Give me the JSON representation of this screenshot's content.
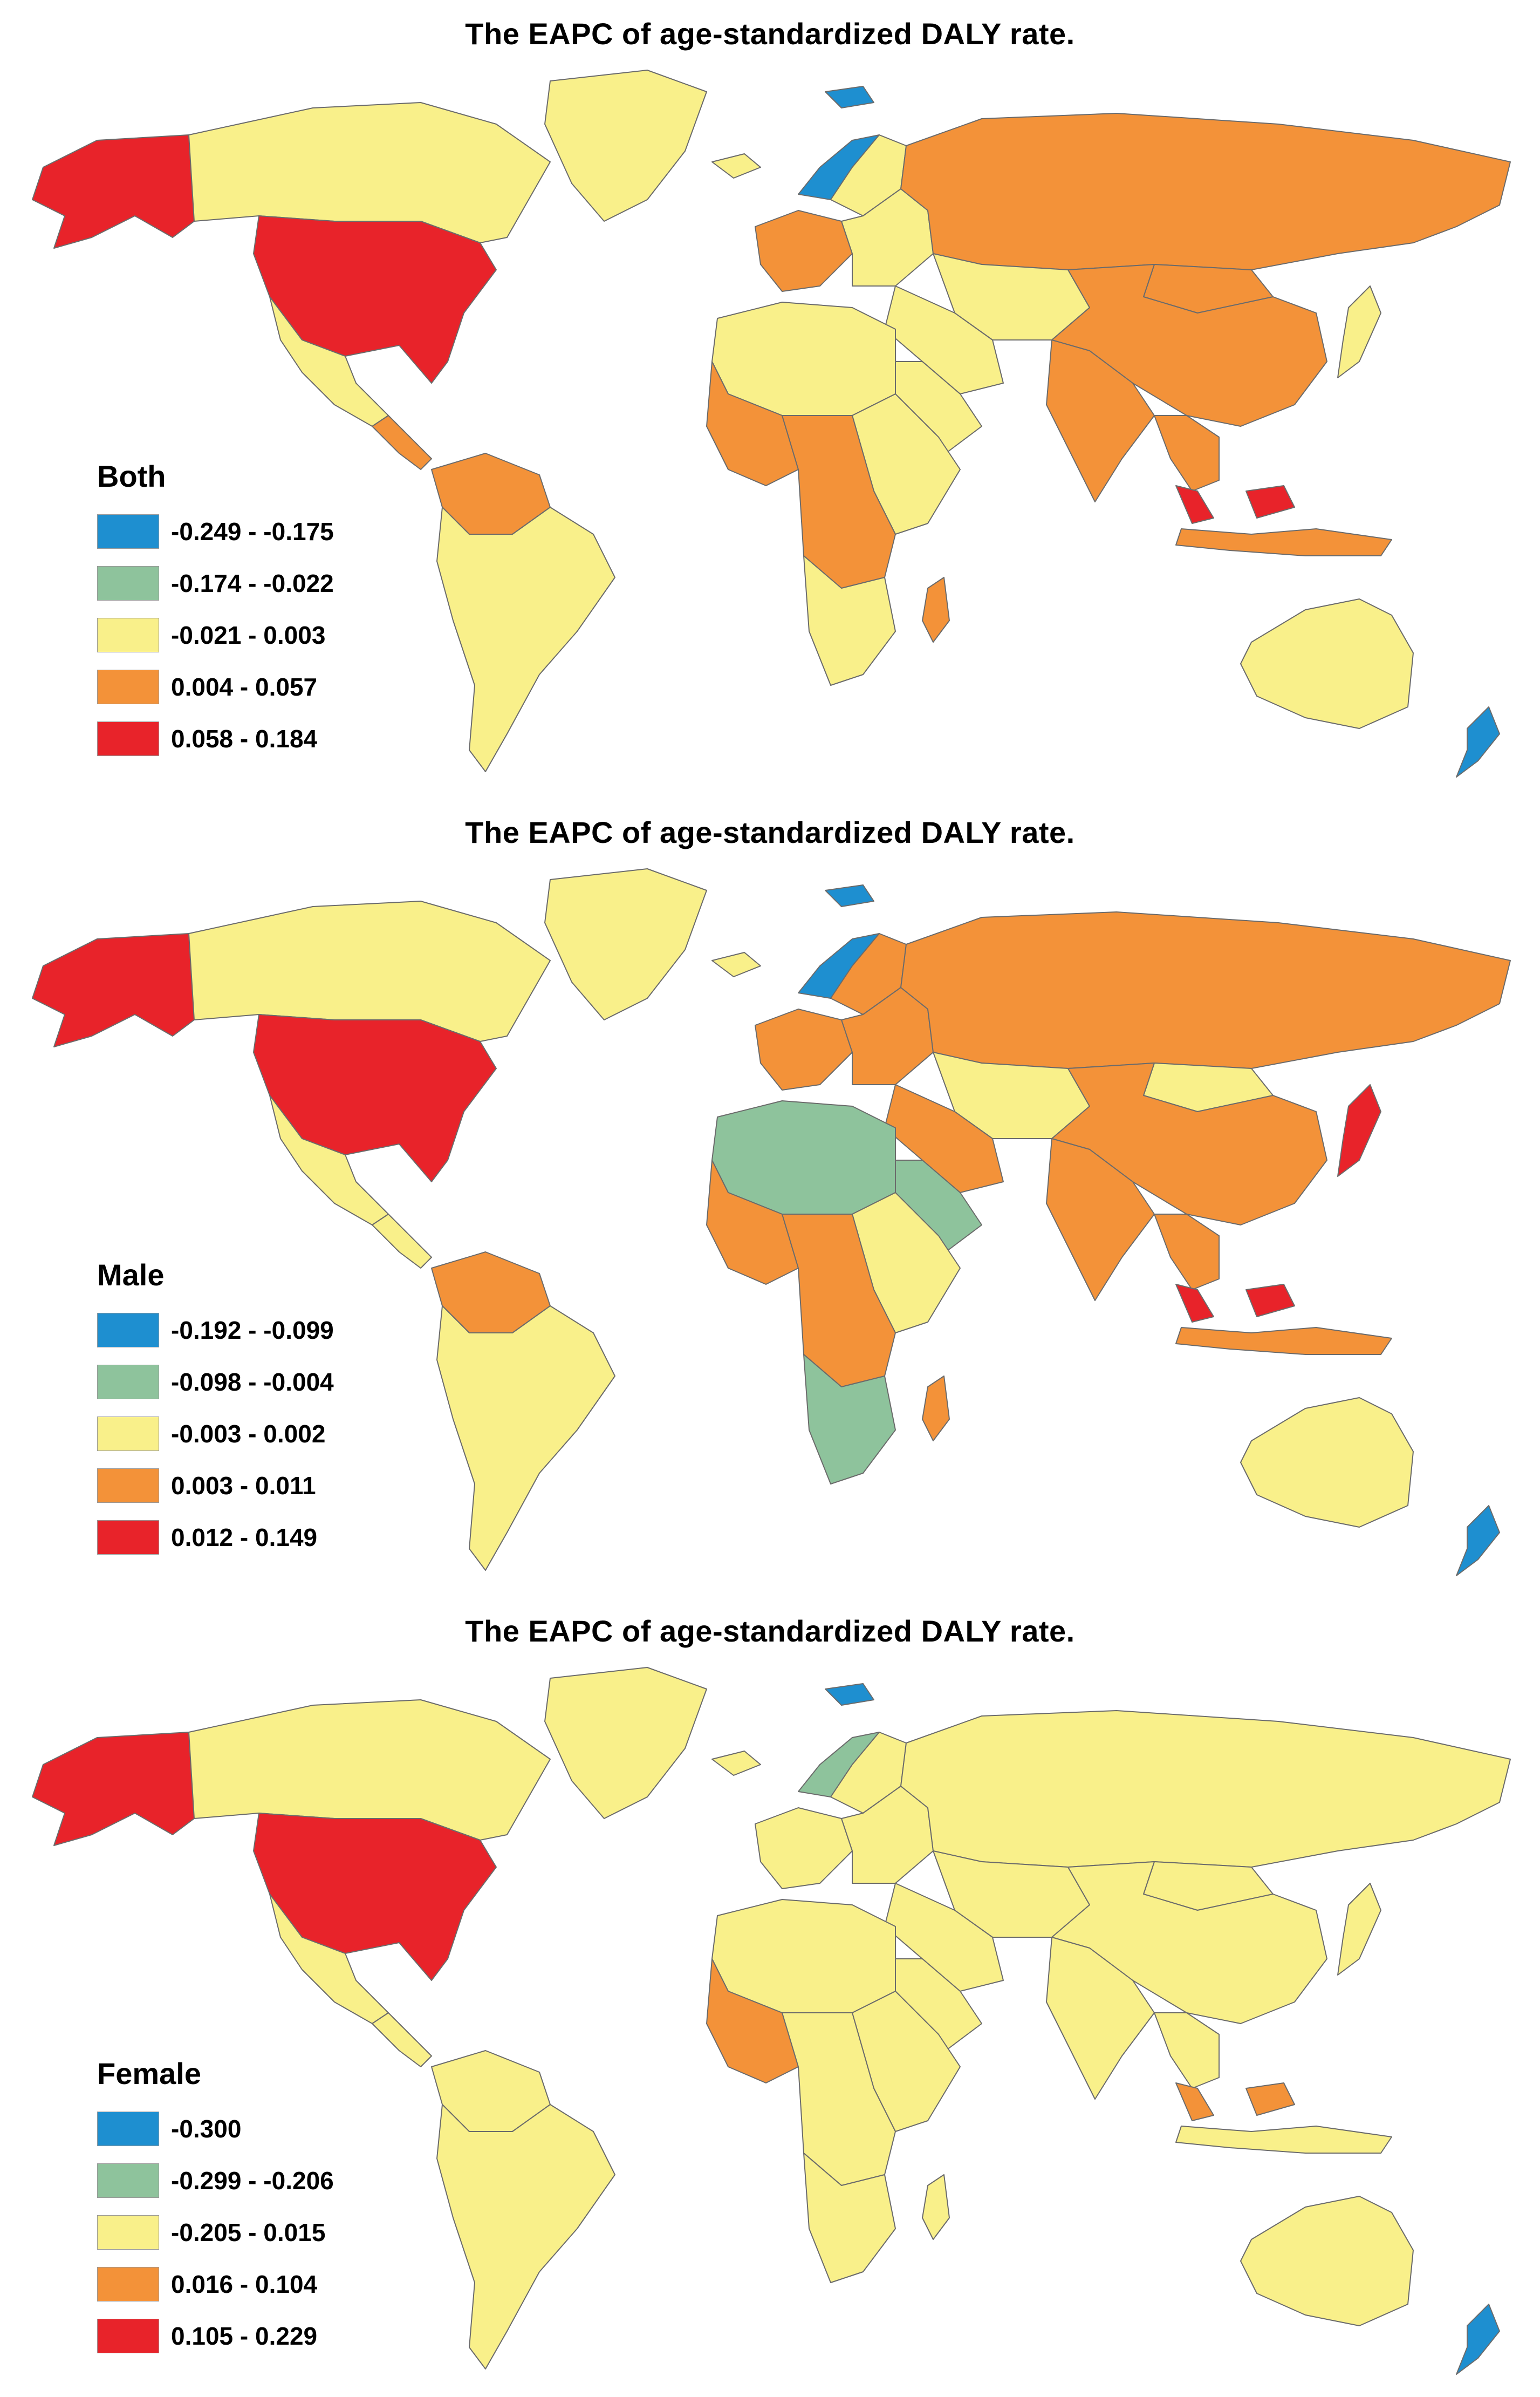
{
  "palette": {
    "blue": "#1e8fd0",
    "green": "#8ec39c",
    "yellow": "#f9f08a",
    "orange": "#f39239",
    "red": "#e8232a"
  },
  "panels": [
    {
      "title": "The EAPC of age-standardized DALY rate.",
      "legend": {
        "title": "Both",
        "items": [
          {
            "label": "-0.249 - -0.175",
            "color": "#1e8fd0"
          },
          {
            "label": "-0.174 - -0.022",
            "color": "#8ec39c"
          },
          {
            "label": "-0.021 - 0.003",
            "color": "#f9f08a"
          },
          {
            "label": "0.004 - 0.057",
            "color": "#f39239"
          },
          {
            "label": "0.058 - 0.184",
            "color": "#e8232a"
          }
        ]
      },
      "regions": {
        "usa": "#e8232a",
        "alaska": "#e8232a",
        "canada": "#f9f08a",
        "greenland": "#f9f08a",
        "mexico": "#f9f08a",
        "central_america": "#f39239",
        "northern_south_america": "#f39239",
        "south_america": "#f9f08a",
        "iceland": "#f9f08a",
        "norway": "#1e8fd0",
        "sweden_finland": "#f9f08a",
        "western_europe": "#f39239",
        "eastern_europe": "#f9f08a",
        "russia": "#f39239",
        "north_africa": "#f9f08a",
        "west_africa": "#f39239",
        "central_africa": "#f39239",
        "east_africa": "#f9f08a",
        "southern_africa": "#f9f08a",
        "madagascar": "#f39239",
        "middle_east": "#f9f08a",
        "arabia": "#f9f08a",
        "central_asia": "#f9f08a",
        "india": "#f39239",
        "china": "#f39239",
        "mongolia": "#f39239",
        "japan": "#f9f08a",
        "southeast_asia": "#f39239",
        "malaysia": "#e8232a",
        "indonesia": "#f39239",
        "australia": "#f9f08a",
        "new_zealand": "#1e8fd0",
        "svalbard": "#1e8fd0"
      }
    },
    {
      "title": "The EAPC of age-standardized DALY rate.",
      "legend": {
        "title": "Male",
        "items": [
          {
            "label": "-0.192 - -0.099",
            "color": "#1e8fd0"
          },
          {
            "label": "-0.098 - -0.004",
            "color": "#8ec39c"
          },
          {
            "label": "-0.003 - 0.002",
            "color": "#f9f08a"
          },
          {
            "label": "0.003 - 0.011",
            "color": "#f39239"
          },
          {
            "label": "0.012 - 0.149",
            "color": "#e8232a"
          }
        ]
      },
      "regions": {
        "usa": "#e8232a",
        "alaska": "#e8232a",
        "canada": "#f9f08a",
        "greenland": "#f9f08a",
        "mexico": "#f9f08a",
        "central_america": "#f9f08a",
        "northern_south_america": "#f39239",
        "south_america": "#f9f08a",
        "iceland": "#f9f08a",
        "norway": "#1e8fd0",
        "sweden_finland": "#f39239",
        "western_europe": "#f39239",
        "eastern_europe": "#f39239",
        "russia": "#f39239",
        "north_africa": "#8ec39c",
        "west_africa": "#f39239",
        "central_africa": "#f39239",
        "east_africa": "#f9f08a",
        "southern_africa": "#8ec39c",
        "madagascar": "#f39239",
        "middle_east": "#f39239",
        "arabia": "#8ec39c",
        "central_asia": "#f9f08a",
        "india": "#f39239",
        "china": "#f39239",
        "mongolia": "#f9f08a",
        "japan": "#e8232a",
        "southeast_asia": "#f39239",
        "malaysia": "#e8232a",
        "indonesia": "#f39239",
        "australia": "#f9f08a",
        "new_zealand": "#1e8fd0",
        "svalbard": "#1e8fd0"
      }
    },
    {
      "title": "The EAPC of age-standardized DALY rate.",
      "legend": {
        "title": "Female",
        "items": [
          {
            "label": "-0.300",
            "color": "#1e8fd0"
          },
          {
            "label": "-0.299 - -0.206",
            "color": "#8ec39c"
          },
          {
            "label": "-0.205 - 0.015",
            "color": "#f9f08a"
          },
          {
            "label": "0.016 - 0.104",
            "color": "#f39239"
          },
          {
            "label": "0.105 - 0.229",
            "color": "#e8232a"
          }
        ]
      },
      "regions": {
        "usa": "#e8232a",
        "alaska": "#e8232a",
        "canada": "#f9f08a",
        "greenland": "#f9f08a",
        "mexico": "#f9f08a",
        "central_america": "#f9f08a",
        "northern_south_america": "#f9f08a",
        "south_america": "#f9f08a",
        "iceland": "#f9f08a",
        "norway": "#8ec39c",
        "sweden_finland": "#f9f08a",
        "western_europe": "#f9f08a",
        "eastern_europe": "#f9f08a",
        "russia": "#f9f08a",
        "north_africa": "#f9f08a",
        "west_africa": "#f39239",
        "central_africa": "#f9f08a",
        "east_africa": "#f9f08a",
        "southern_africa": "#f9f08a",
        "madagascar": "#f9f08a",
        "middle_east": "#f9f08a",
        "arabia": "#f9f08a",
        "central_asia": "#f9f08a",
        "india": "#f9f08a",
        "china": "#f9f08a",
        "mongolia": "#f9f08a",
        "japan": "#f9f08a",
        "southeast_asia": "#f9f08a",
        "malaysia": "#f39239",
        "indonesia": "#f9f08a",
        "australia": "#f9f08a",
        "new_zealand": "#1e8fd0",
        "svalbard": "#1e8fd0"
      }
    }
  ]
}
